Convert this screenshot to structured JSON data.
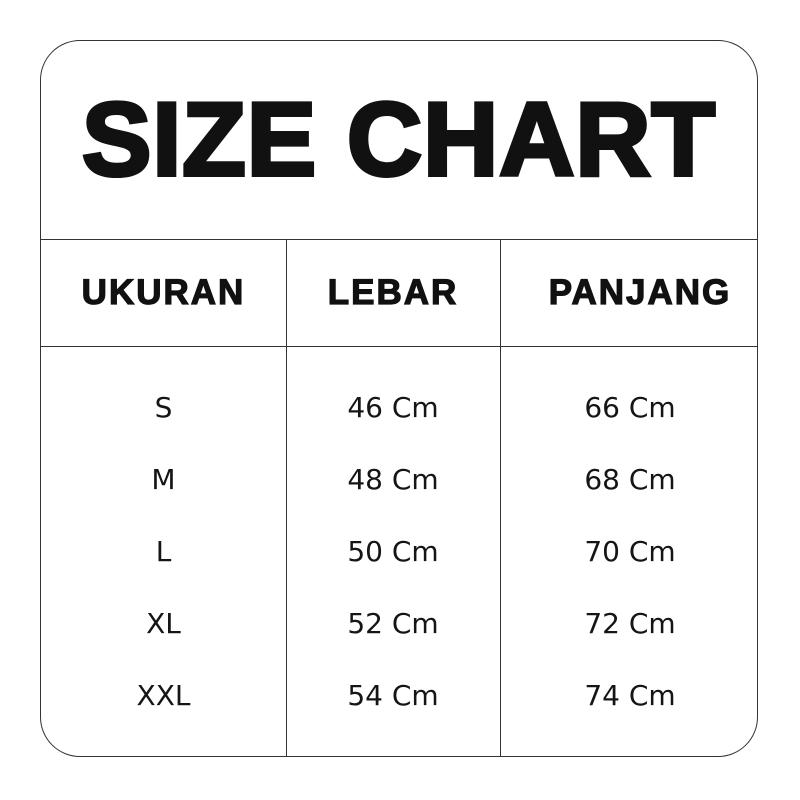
{
  "title": "SIZE CHART",
  "headers": [
    "UKURAN",
    "LEBAR",
    "PANJANG"
  ],
  "rows": [
    [
      "S",
      "46 Cm",
      "66 Cm"
    ],
    [
      "M",
      "48 Cm",
      "68 Cm"
    ],
    [
      "L",
      "50 Cm",
      "70 Cm"
    ],
    [
      "XL",
      "52 Cm",
      "72 Cm"
    ],
    [
      "XXL",
      "54 Cm",
      "74 Cm"
    ]
  ]
}
